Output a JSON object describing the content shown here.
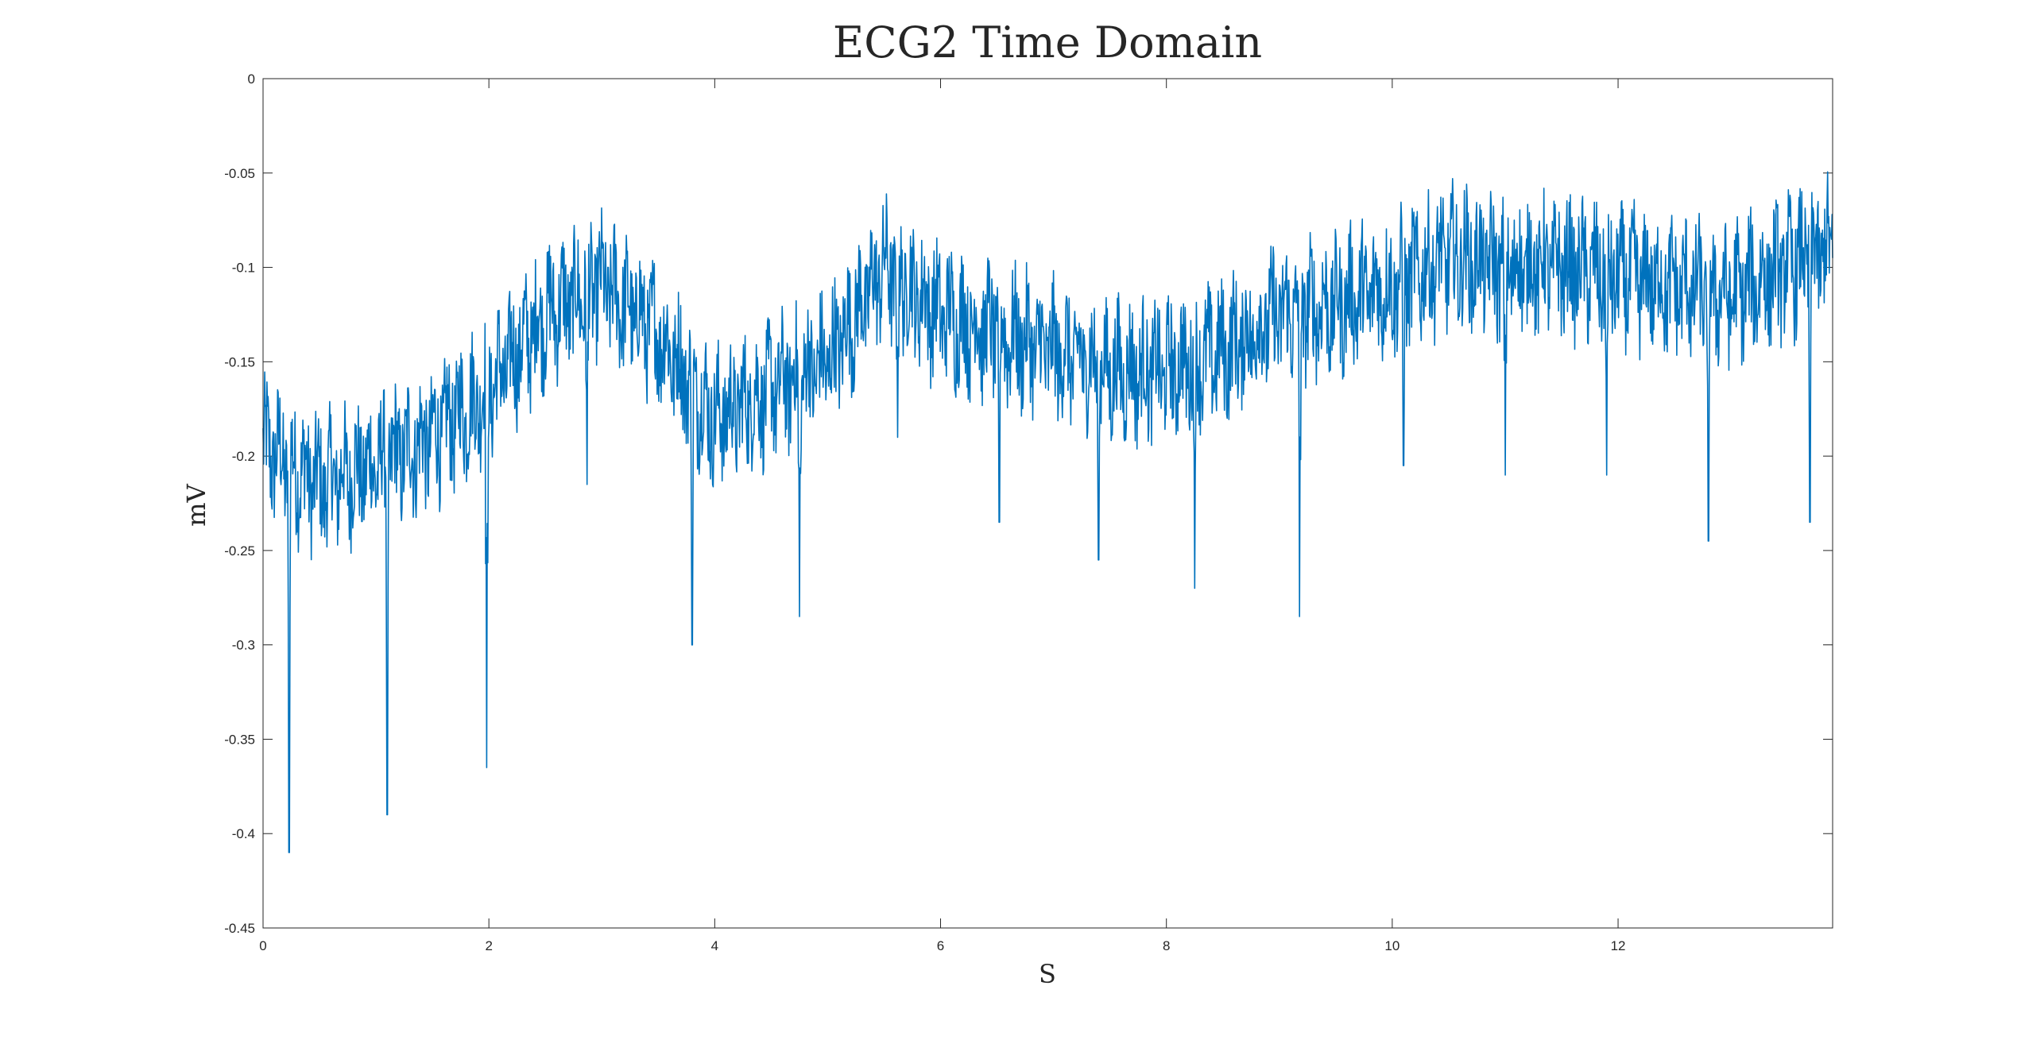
{
  "chart_data": {
    "type": "line",
    "title": "ECG2 Time Domain",
    "xlabel": "S",
    "ylabel": "mV",
    "xlim": [
      0,
      13.9
    ],
    "ylim": [
      -0.45,
      0
    ],
    "xticks": [
      0,
      2,
      4,
      6,
      8,
      10,
      12
    ],
    "xtick_labels": [
      "0",
      "2",
      "4",
      "6",
      "8",
      "10",
      "12"
    ],
    "yticks": [
      0,
      -0.05,
      -0.1,
      -0.15,
      -0.2,
      -0.25,
      -0.3,
      -0.35,
      -0.4,
      -0.45
    ],
    "ytick_labels": [
      "0",
      "-0.05",
      "-0.1",
      "-0.15",
      "-0.2",
      "-0.25",
      "-0.3",
      "-0.35",
      "-0.4",
      "-0.45"
    ],
    "grid": false,
    "series_color": "#0072BD",
    "series": [
      {
        "baseline": {
          "x": [
            0,
            0.5,
            1.0,
            1.5,
            2.0,
            2.5,
            3.0,
            3.5,
            4.0,
            4.5,
            5.0,
            5.5,
            6.0,
            6.5,
            7.0,
            7.5,
            8.0,
            8.5,
            9.0,
            9.5,
            10.0,
            10.5,
            11.0,
            11.5,
            12.0,
            12.5,
            13.0,
            13.5,
            13.9
          ],
          "y": [
            -0.195,
            -0.215,
            -0.205,
            -0.19,
            -0.165,
            -0.125,
            -0.11,
            -0.135,
            -0.18,
            -0.165,
            -0.15,
            -0.1,
            -0.125,
            -0.135,
            -0.145,
            -0.155,
            -0.155,
            -0.145,
            -0.125,
            -0.12,
            -0.11,
            -0.095,
            -0.1,
            -0.1,
            -0.105,
            -0.11,
            -0.115,
            -0.1,
            -0.09
          ]
        },
        "noise_amplitude": 0.035,
        "spikes": [
          {
            "x": 0.23,
            "y": -0.41
          },
          {
            "x": 1.1,
            "y": -0.39
          },
          {
            "x": 1.98,
            "y": -0.365
          },
          {
            "x": 2.87,
            "y": -0.215
          },
          {
            "x": 3.8,
            "y": -0.3
          },
          {
            "x": 4.75,
            "y": -0.285
          },
          {
            "x": 5.62,
            "y": -0.19
          },
          {
            "x": 6.52,
            "y": -0.235
          },
          {
            "x": 7.4,
            "y": -0.255
          },
          {
            "x": 8.25,
            "y": -0.27
          },
          {
            "x": 9.18,
            "y": -0.285
          },
          {
            "x": 10.1,
            "y": -0.205
          },
          {
            "x": 11.0,
            "y": -0.21
          },
          {
            "x": 11.9,
            "y": -0.21
          },
          {
            "x": 12.8,
            "y": -0.245
          },
          {
            "x": 13.7,
            "y": -0.235
          }
        ]
      }
    ]
  }
}
